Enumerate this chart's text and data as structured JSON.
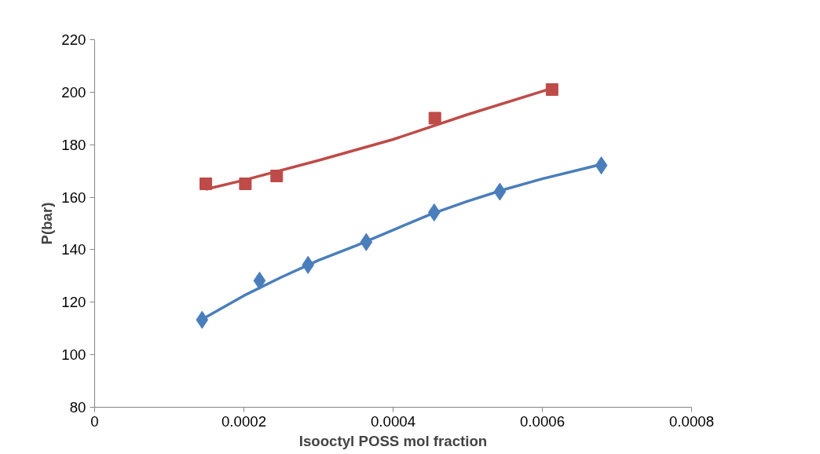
{
  "chart_data": {
    "type": "scatter",
    "xlabel": "Isooctyl POSS mol fraction",
    "ylabel": "P(bar)",
    "xlim": [
      0,
      0.0008
    ],
    "xticks": [
      0,
      0.0002,
      0.0004,
      0.0006,
      0.0008
    ],
    "ylim": [
      80,
      220
    ],
    "yticks": [
      80,
      100,
      120,
      140,
      160,
      180,
      200,
      220
    ],
    "grid": false,
    "series": [
      {
        "marker": "diamond",
        "color": "#4a7ebb",
        "x": [
          0.000144,
          0.000221,
          0.000286,
          0.000364,
          0.000455,
          0.000543,
          0.000679
        ],
        "values": [
          113.3,
          128.2,
          134.2,
          142.9,
          154.2,
          162.1,
          172.1
        ]
      },
      {
        "marker": "square",
        "color": "#be4b48",
        "x": [
          0.000149,
          0.000202,
          0.000244,
          0.000456,
          0.000613
        ],
        "values": [
          165.1,
          165.1,
          168.1,
          190.1,
          201
        ]
      },
      {
        "type": "line",
        "line_style": "solid",
        "color": "#4a7ebb",
        "x": [
          0.000144,
          0.0002,
          0.00025,
          0.0003,
          0.00035,
          0.0004,
          0.00045,
          0.0005,
          0.00055,
          0.0006,
          0.00065,
          0.000679
        ],
        "values": [
          113.5,
          122.5,
          129.5,
          136,
          141.5,
          147.5,
          153.5,
          158.5,
          163,
          167,
          170.5,
          172.5
        ]
      },
      {
        "type": "line",
        "line_style": "solid",
        "color": "#be4b48",
        "x": [
          0.000149,
          0.0002,
          0.0003,
          0.0004,
          0.0005,
          0.000613
        ],
        "values": [
          163,
          166.5,
          174,
          182,
          191.5,
          201.5
        ]
      }
    ]
  }
}
